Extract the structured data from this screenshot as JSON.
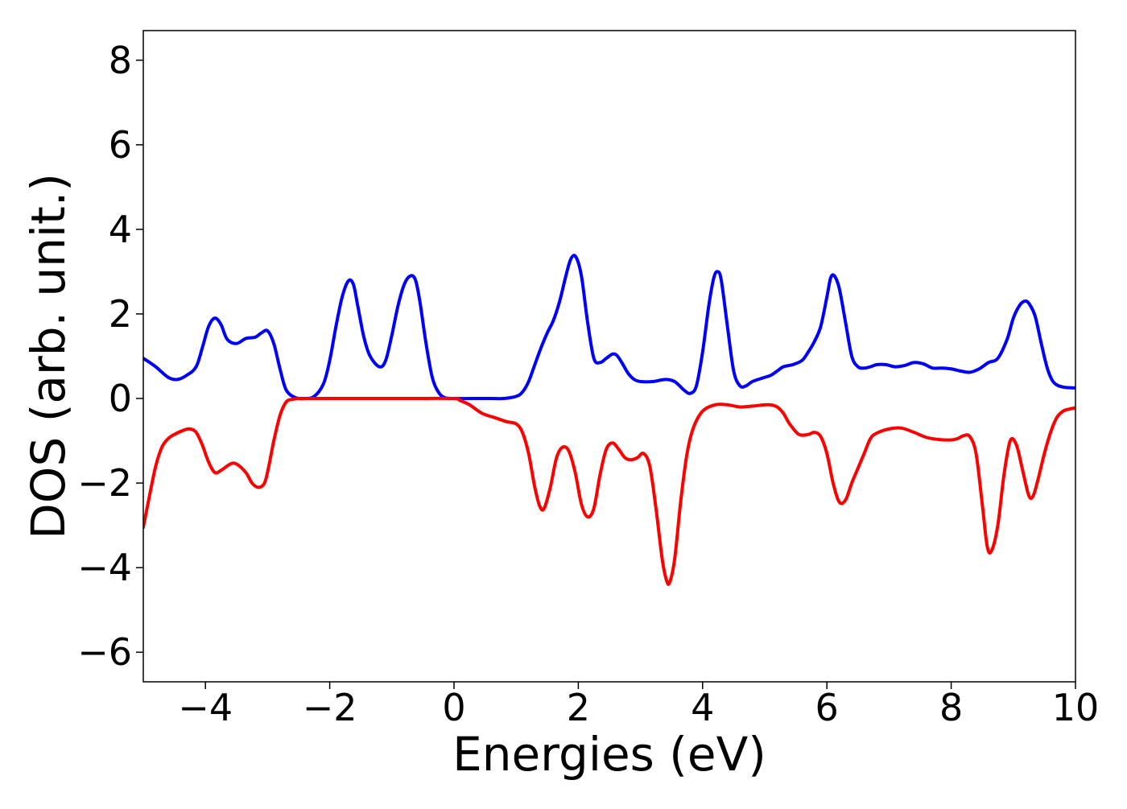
{
  "chart_data": {
    "type": "line",
    "title": "",
    "xlabel": "Energies (eV)",
    "ylabel": "DOS (arb. unit.)",
    "xlim": [
      -5,
      10
    ],
    "ylim": [
      -6.7,
      8.7
    ],
    "xticks": [
      -4,
      -2,
      0,
      2,
      4,
      6,
      8,
      10
    ],
    "yticks": [
      -6,
      -4,
      -2,
      0,
      2,
      4,
      6,
      8
    ],
    "xtick_labels": [
      "−4",
      "−2",
      "0",
      "2",
      "4",
      "6",
      "8",
      "10"
    ],
    "ytick_labels": [
      "−6",
      "−4",
      "−2",
      "0",
      "2",
      "4",
      "6",
      "8"
    ],
    "grid": false,
    "legend": "none",
    "series": [
      {
        "color": "#0000ff",
        "x": [
          -5.0,
          -4.8,
          -4.6,
          -4.45,
          -4.3,
          -4.15,
          -4.05,
          -3.95,
          -3.85,
          -3.75,
          -3.65,
          -3.5,
          -3.35,
          -3.2,
          -3.1,
          -3.0,
          -2.9,
          -2.8,
          -2.7,
          -2.55,
          -2.4,
          -2.25,
          -2.1,
          -2.0,
          -1.9,
          -1.8,
          -1.7,
          -1.62,
          -1.55,
          -1.45,
          -1.35,
          -1.2,
          -1.1,
          -1.0,
          -0.9,
          -0.8,
          -0.7,
          -0.62,
          -0.55,
          -0.45,
          -0.35,
          -0.25,
          -0.15,
          0.0,
          0.3,
          0.6,
          0.8,
          1.0,
          1.1,
          1.2,
          1.3,
          1.4,
          1.5,
          1.6,
          1.7,
          1.8,
          1.88,
          1.96,
          2.05,
          2.15,
          2.25,
          2.35,
          2.45,
          2.55,
          2.62,
          2.7,
          2.8,
          2.9,
          3.0,
          3.2,
          3.4,
          3.55,
          3.7,
          3.8,
          3.9,
          4.0,
          4.1,
          4.18,
          4.24,
          4.3,
          4.4,
          4.5,
          4.6,
          4.7,
          4.8,
          5.0,
          5.1,
          5.2,
          5.3,
          5.45,
          5.6,
          5.7,
          5.8,
          5.9,
          6.0,
          6.06,
          6.12,
          6.2,
          6.3,
          6.4,
          6.5,
          6.6,
          6.7,
          6.8,
          6.95,
          7.1,
          7.25,
          7.4,
          7.55,
          7.7,
          7.85,
          8.0,
          8.15,
          8.3,
          8.45,
          8.6,
          8.75,
          8.9,
          9.0,
          9.1,
          9.18,
          9.25,
          9.35,
          9.45,
          9.55,
          9.65,
          9.8,
          10.0
        ],
        "y": [
          0.95,
          0.75,
          0.5,
          0.45,
          0.55,
          0.75,
          1.2,
          1.7,
          1.9,
          1.75,
          1.4,
          1.3,
          1.42,
          1.45,
          1.55,
          1.6,
          1.3,
          0.7,
          0.2,
          0.02,
          0.0,
          0.05,
          0.35,
          0.9,
          1.7,
          2.4,
          2.78,
          2.7,
          2.2,
          1.45,
          1.0,
          0.75,
          0.9,
          1.5,
          2.2,
          2.7,
          2.9,
          2.8,
          2.3,
          1.3,
          0.5,
          0.15,
          0.02,
          0.0,
          0.0,
          0.0,
          0.0,
          0.05,
          0.15,
          0.4,
          0.8,
          1.2,
          1.55,
          1.85,
          2.3,
          2.9,
          3.3,
          3.35,
          2.9,
          1.8,
          0.95,
          0.85,
          0.95,
          1.05,
          1.02,
          0.85,
          0.6,
          0.45,
          0.4,
          0.4,
          0.45,
          0.4,
          0.2,
          0.12,
          0.3,
          1.1,
          2.2,
          2.85,
          3.0,
          2.8,
          1.7,
          0.65,
          0.3,
          0.3,
          0.4,
          0.5,
          0.55,
          0.65,
          0.75,
          0.8,
          0.9,
          1.1,
          1.35,
          1.7,
          2.4,
          2.85,
          2.9,
          2.6,
          1.8,
          1.0,
          0.75,
          0.72,
          0.75,
          0.8,
          0.8,
          0.75,
          0.78,
          0.85,
          0.82,
          0.72,
          0.72,
          0.7,
          0.65,
          0.62,
          0.7,
          0.85,
          0.95,
          1.4,
          1.9,
          2.2,
          2.3,
          2.25,
          1.95,
          1.3,
          0.7,
          0.38,
          0.27,
          0.25
        ]
      },
      {
        "color": "#ff0000",
        "x": [
          -5.0,
          -4.9,
          -4.8,
          -4.7,
          -4.6,
          -4.5,
          -4.35,
          -4.25,
          -4.15,
          -4.05,
          -3.95,
          -3.85,
          -3.75,
          -3.6,
          -3.5,
          -3.35,
          -3.25,
          -3.15,
          -3.05,
          -2.98,
          -2.9,
          -2.8,
          -2.7,
          -2.6,
          -2.5,
          -2.3,
          -2.0,
          -1.5,
          -1.0,
          -0.5,
          0.0,
          0.1,
          0.25,
          0.45,
          0.65,
          0.85,
          1.0,
          1.1,
          1.2,
          1.3,
          1.38,
          1.45,
          1.55,
          1.65,
          1.75,
          1.85,
          1.95,
          2.05,
          2.15,
          2.25,
          2.35,
          2.45,
          2.55,
          2.65,
          2.75,
          2.85,
          2.95,
          3.05,
          3.15,
          3.25,
          3.35,
          3.42,
          3.47,
          3.55,
          3.65,
          3.75,
          3.85,
          4.0,
          4.2,
          4.4,
          4.6,
          4.8,
          5.0,
          5.1,
          5.2,
          5.3,
          5.4,
          5.55,
          5.7,
          5.8,
          5.9,
          6.0,
          6.1,
          6.2,
          6.3,
          6.4,
          6.5,
          6.6,
          6.7,
          6.8,
          7.0,
          7.2,
          7.4,
          7.6,
          7.8,
          8.0,
          8.1,
          8.2,
          8.3,
          8.4,
          8.5,
          8.58,
          8.65,
          8.75,
          8.85,
          8.95,
          9.05,
          9.15,
          9.25,
          9.32,
          9.4,
          9.5,
          9.6,
          9.7,
          9.8,
          9.9,
          10.0
        ],
        "y": [
          -3.05,
          -2.3,
          -1.6,
          -1.15,
          -0.95,
          -0.85,
          -0.75,
          -0.72,
          -0.8,
          -1.1,
          -1.5,
          -1.75,
          -1.7,
          -1.55,
          -1.55,
          -1.75,
          -2.0,
          -2.1,
          -2.0,
          -1.6,
          -1.0,
          -0.4,
          -0.08,
          -0.02,
          0.0,
          0.0,
          0.0,
          0.0,
          0.0,
          0.0,
          0.0,
          -0.05,
          -0.15,
          -0.35,
          -0.45,
          -0.55,
          -0.6,
          -0.8,
          -1.3,
          -2.1,
          -2.55,
          -2.6,
          -2.1,
          -1.4,
          -1.15,
          -1.25,
          -1.75,
          -2.5,
          -2.8,
          -2.6,
          -1.8,
          -1.2,
          -1.05,
          -1.2,
          -1.4,
          -1.45,
          -1.4,
          -1.3,
          -1.6,
          -2.6,
          -3.8,
          -4.3,
          -4.35,
          -3.8,
          -2.4,
          -1.3,
          -0.7,
          -0.3,
          -0.15,
          -0.15,
          -0.2,
          -0.18,
          -0.15,
          -0.15,
          -0.2,
          -0.35,
          -0.6,
          -0.85,
          -0.85,
          -0.8,
          -0.9,
          -1.3,
          -2.0,
          -2.45,
          -2.4,
          -2.0,
          -1.65,
          -1.3,
          -0.95,
          -0.82,
          -0.72,
          -0.7,
          -0.8,
          -0.92,
          -0.97,
          -0.98,
          -0.95,
          -0.88,
          -0.9,
          -1.3,
          -2.5,
          -3.5,
          -3.6,
          -3.0,
          -1.8,
          -1.0,
          -1.1,
          -1.7,
          -2.3,
          -2.3,
          -1.9,
          -1.3,
          -0.8,
          -0.45,
          -0.3,
          -0.25,
          -0.22
        ]
      }
    ]
  }
}
